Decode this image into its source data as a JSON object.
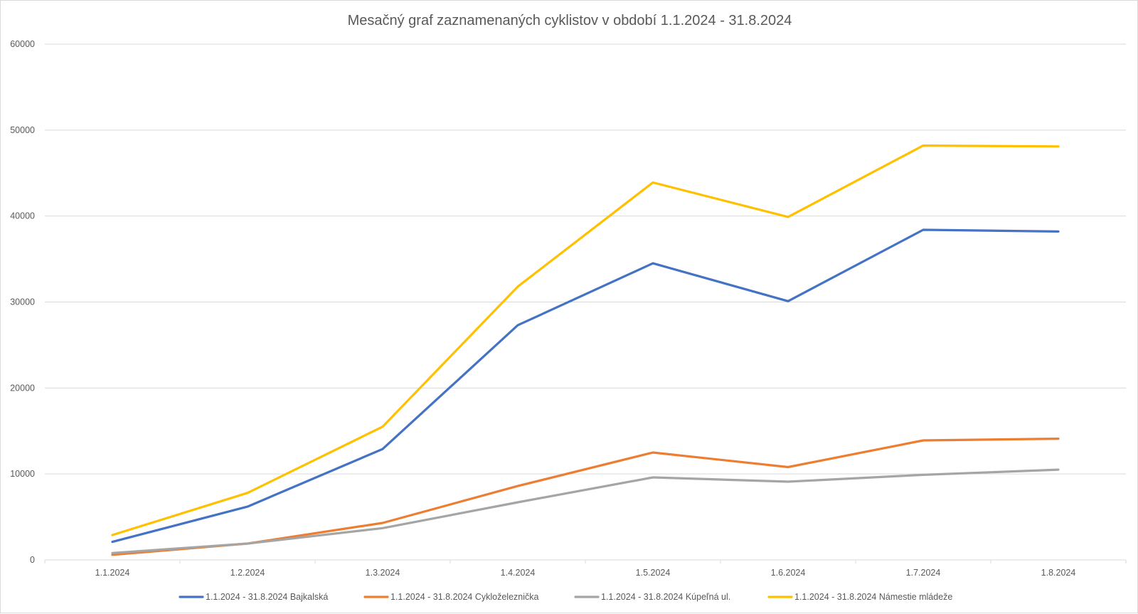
{
  "chart_data": {
    "type": "line",
    "title": "Mesačný graf zaznamenaných cyklistov v období 1.1.2024 - 31.8.2024",
    "xlabel": "",
    "ylabel": "",
    "categories": [
      "1.1.2024",
      "1.2.2024",
      "1.3.2024",
      "1.4.2024",
      "1.5.2024",
      "1.6.2024",
      "1.7.2024",
      "1.8.2024"
    ],
    "ylim": [
      0,
      60000
    ],
    "yticks": [
      "0",
      "10000",
      "20000",
      "30000",
      "40000",
      "50000",
      "60000"
    ],
    "grid": true,
    "legend_position": "bottom",
    "series": [
      {
        "name": "1.1.2024 - 31.8.2024 Bajkalská",
        "color": "#4472C4",
        "values": [
          2100,
          6200,
          12900,
          27300,
          34500,
          30100,
          38400,
          38200
        ]
      },
      {
        "name": "1.1.2024 - 31.8.2024 Cykloželeznička",
        "color": "#ED7D31",
        "values": [
          600,
          1900,
          4300,
          8600,
          12500,
          10800,
          13900,
          14100
        ]
      },
      {
        "name": "1.1.2024 - 31.8.2024 Kúpeľná ul.",
        "color": "#A5A5A5",
        "values": [
          800,
          1900,
          3700,
          6700,
          9600,
          9100,
          9900,
          10500
        ]
      },
      {
        "name": "1.1.2024 - 31.8.2024 Námestie mládeže",
        "color": "#FFC000",
        "values": [
          2900,
          7800,
          15500,
          31800,
          43900,
          39900,
          48200,
          48100
        ]
      }
    ]
  }
}
